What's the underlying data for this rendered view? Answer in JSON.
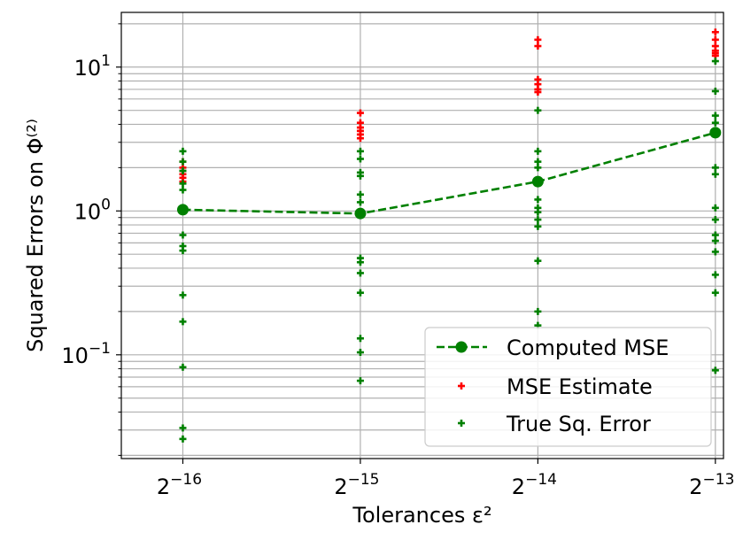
{
  "chart_data": {
    "type": "scatter",
    "xlabel": "Tolerances ε²",
    "ylabel": "Squared Errors on Φ⁽²⁾",
    "x_scale": "log2",
    "y_scale": "log10",
    "xlim": [
      1.2e-05,
      0.000126
    ],
    "ylim": [
      0.019,
      24
    ],
    "grid": true,
    "legend_position": "lower right",
    "x_ticks": [
      {
        "value": 1.52587890625e-05,
        "base": "2",
        "exp": "−16"
      },
      {
        "value": 3.0517578125e-05,
        "base": "2",
        "exp": "−15"
      },
      {
        "value": 6.103515625e-05,
        "base": "2",
        "exp": "−14"
      },
      {
        "value": 0.0001220703125,
        "base": "2",
        "exp": "−13"
      }
    ],
    "y_ticks": [
      {
        "value": 0.1,
        "base": "10",
        "exp": "−1"
      },
      {
        "value": 1,
        "base": "10",
        "exp": "0"
      },
      {
        "value": 10,
        "base": "10",
        "exp": "1"
      }
    ],
    "series": [
      {
        "name": "Computed MSE",
        "kind": "line",
        "color": "#008000",
        "style": "dashed",
        "marker": "circle",
        "points": [
          [
            1.52587890625e-05,
            1.02
          ],
          [
            3.0517578125e-05,
            0.96
          ],
          [
            6.103515625e-05,
            1.6
          ],
          [
            0.0001220703125,
            3.5
          ]
        ]
      },
      {
        "name": "MSE Estimate",
        "kind": "scatter",
        "color": "#ff0000",
        "marker": "plus",
        "points": [
          [
            1.52587890625e-05,
            2.2
          ],
          [
            1.52587890625e-05,
            2.0
          ],
          [
            1.52587890625e-05,
            1.9
          ],
          [
            1.52587890625e-05,
            1.8
          ],
          [
            1.52587890625e-05,
            1.6
          ],
          [
            1.52587890625e-05,
            1.7
          ],
          [
            3.0517578125e-05,
            4.8
          ],
          [
            3.0517578125e-05,
            4.1
          ],
          [
            3.0517578125e-05,
            3.8
          ],
          [
            3.0517578125e-05,
            3.6
          ],
          [
            3.0517578125e-05,
            3.4
          ],
          [
            3.0517578125e-05,
            3.2
          ],
          [
            6.103515625e-05,
            15.5
          ],
          [
            6.103515625e-05,
            14.0
          ],
          [
            6.103515625e-05,
            8.2
          ],
          [
            6.103515625e-05,
            7.6
          ],
          [
            6.103515625e-05,
            7.0
          ],
          [
            6.103515625e-05,
            6.7
          ],
          [
            0.0001220703125,
            17.5
          ],
          [
            0.0001220703125,
            15.5
          ],
          [
            0.0001220703125,
            14.0
          ],
          [
            0.0001220703125,
            13.0
          ],
          [
            0.0001220703125,
            12.0
          ],
          [
            0.0001220703125,
            12.5
          ]
        ]
      },
      {
        "name": "True Sq. Error",
        "kind": "scatter",
        "color": "#008000",
        "marker": "plus",
        "points": [
          [
            1.52587890625e-05,
            2.6
          ],
          [
            1.52587890625e-05,
            2.2
          ],
          [
            1.52587890625e-05,
            1.9
          ],
          [
            1.52587890625e-05,
            1.55
          ],
          [
            1.52587890625e-05,
            1.4
          ],
          [
            1.52587890625e-05,
            1.0
          ],
          [
            1.52587890625e-05,
            0.68
          ],
          [
            1.52587890625e-05,
            0.57
          ],
          [
            1.52587890625e-05,
            0.53
          ],
          [
            1.52587890625e-05,
            0.26
          ],
          [
            1.52587890625e-05,
            0.17
          ],
          [
            1.52587890625e-05,
            0.082
          ],
          [
            1.52587890625e-05,
            0.031
          ],
          [
            1.52587890625e-05,
            0.026
          ],
          [
            3.0517578125e-05,
            2.6
          ],
          [
            3.0517578125e-05,
            2.3
          ],
          [
            3.0517578125e-05,
            1.85
          ],
          [
            3.0517578125e-05,
            1.75
          ],
          [
            3.0517578125e-05,
            1.3
          ],
          [
            3.0517578125e-05,
            1.15
          ],
          [
            3.0517578125e-05,
            0.47
          ],
          [
            3.0517578125e-05,
            0.44
          ],
          [
            3.0517578125e-05,
            0.37
          ],
          [
            3.0517578125e-05,
            0.27
          ],
          [
            3.0517578125e-05,
            0.13
          ],
          [
            3.0517578125e-05,
            0.104
          ],
          [
            3.0517578125e-05,
            0.066
          ],
          [
            6.103515625e-05,
            5.0
          ],
          [
            6.103515625e-05,
            2.6
          ],
          [
            6.103515625e-05,
            2.2
          ],
          [
            6.103515625e-05,
            2.0
          ],
          [
            6.103515625e-05,
            1.55
          ],
          [
            6.103515625e-05,
            1.2
          ],
          [
            6.103515625e-05,
            1.05
          ],
          [
            6.103515625e-05,
            0.98
          ],
          [
            6.103515625e-05,
            0.87
          ],
          [
            6.103515625e-05,
            0.78
          ],
          [
            6.103515625e-05,
            0.45
          ],
          [
            6.103515625e-05,
            0.2
          ],
          [
            6.103515625e-05,
            0.16
          ],
          [
            0.0001220703125,
            11.0
          ],
          [
            0.0001220703125,
            6.8
          ],
          [
            0.0001220703125,
            4.6
          ],
          [
            0.0001220703125,
            4.1
          ],
          [
            0.0001220703125,
            2.0
          ],
          [
            0.0001220703125,
            1.8
          ],
          [
            0.0001220703125,
            1.05
          ],
          [
            0.0001220703125,
            0.87
          ],
          [
            0.0001220703125,
            0.68
          ],
          [
            0.0001220703125,
            0.62
          ],
          [
            0.0001220703125,
            0.52
          ],
          [
            0.0001220703125,
            0.36
          ],
          [
            0.0001220703125,
            0.27
          ],
          [
            0.0001220703125,
            0.078
          ]
        ]
      }
    ]
  }
}
